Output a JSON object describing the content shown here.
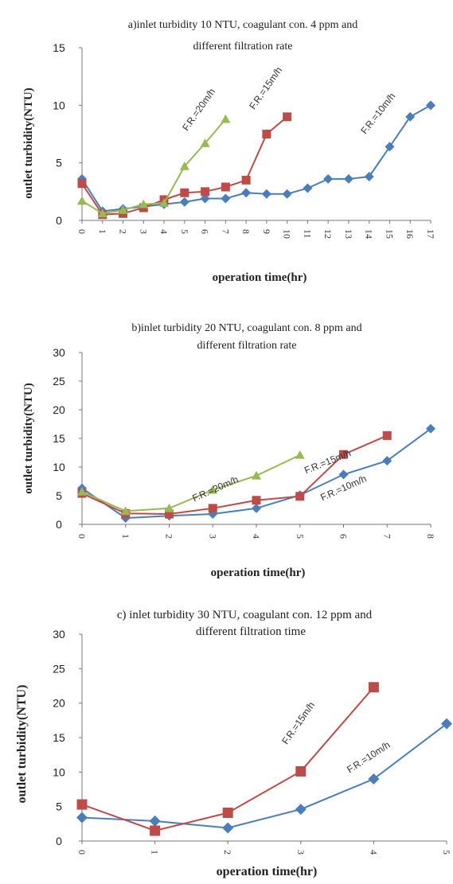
{
  "chart_data": [
    {
      "type": "line",
      "title_line1": "a)inlet turbidity 10 NTU, coagulant con. 4 ppm and",
      "title_line2": "different filtration rate",
      "xlabel": "operation time(hr)",
      "ylabel": "outlet turbidity(NTU)",
      "ylim": [
        0,
        15
      ],
      "yticks": [
        "0",
        "5",
        "10",
        "15"
      ],
      "xlim": [
        0,
        17
      ],
      "xticks": [
        "0",
        "1",
        "2",
        "3",
        "4",
        "5",
        "6",
        "7",
        "8",
        "9",
        "10",
        "11",
        "12",
        "13",
        "14",
        "15",
        "16",
        "17"
      ],
      "grid": false,
      "series": [
        {
          "name": "F.R.=10m/h",
          "color": "#4a7ebb",
          "marker": "diamond",
          "x": [
            0,
            1,
            2,
            3,
            4,
            5,
            6,
            7,
            8,
            9,
            10,
            11,
            12,
            13,
            14,
            15,
            16,
            17
          ],
          "y": [
            3.6,
            0.8,
            1.0,
            1.2,
            1.4,
            1.6,
            1.9,
            1.9,
            2.4,
            2.3,
            2.3,
            2.8,
            3.6,
            3.6,
            3.8,
            6.4,
            9.0,
            10.0
          ]
        },
        {
          "name": "F.R.=15m/h",
          "color": "#be4b48",
          "marker": "square",
          "x": [
            0,
            1,
            2,
            3,
            4,
            5,
            6,
            7,
            8,
            9,
            10
          ],
          "y": [
            3.2,
            0.5,
            0.6,
            1.1,
            1.8,
            2.4,
            2.5,
            2.9,
            3.5,
            7.5,
            9.0
          ]
        },
        {
          "name": "F.R.=20m/h",
          "color": "#98b954",
          "marker": "triangle",
          "x": [
            0,
            1,
            2,
            3,
            4,
            5,
            6,
            7
          ],
          "y": [
            1.7,
            0.6,
            0.9,
            1.4,
            1.5,
            4.7,
            6.7,
            8.8
          ]
        }
      ]
    },
    {
      "type": "line",
      "title_line1": "b)inlet turbidity 20 NTU, coagulant con. 8 ppm and",
      "title_line2": "different filtration rate",
      "xlabel": "operation time(hr)",
      "ylabel": "outlet turbidity(NTU)",
      "ylim": [
        0,
        30
      ],
      "yticks": [
        "0",
        "5",
        "10",
        "15",
        "20",
        "25",
        "30"
      ],
      "xlim": [
        0,
        8
      ],
      "xticks": [
        "0",
        "1",
        "2",
        "3",
        "4",
        "5",
        "6",
        "7",
        "8"
      ],
      "grid": false,
      "series": [
        {
          "name": "F.R.=10m/h",
          "color": "#4a7ebb",
          "marker": "diamond",
          "x": [
            0,
            1,
            2,
            3,
            4,
            5,
            6,
            7,
            8
          ],
          "y": [
            6.3,
            1.1,
            1.5,
            1.8,
            2.8,
            5.1,
            8.7,
            11.1,
            16.7
          ]
        },
        {
          "name": "F.R.=15m/h",
          "color": "#be4b48",
          "marker": "square",
          "x": [
            0,
            1,
            2,
            3,
            4,
            5,
            6,
            7
          ],
          "y": [
            5.4,
            1.9,
            1.8,
            2.8,
            4.2,
            4.9,
            12.2,
            15.5
          ]
        },
        {
          "name": "F.R.=20m/h",
          "color": "#98b954",
          "marker": "triangle",
          "x": [
            0,
            1,
            2,
            3,
            4,
            5
          ],
          "y": [
            5.7,
            2.3,
            2.8,
            6.0,
            8.5,
            12.1
          ]
        }
      ]
    },
    {
      "type": "line",
      "title_line1": "c) inlet turbidity 30 NTU, coagulant con. 12 ppm and",
      "title_line2": "different filtration time",
      "xlabel": "operation time(hr)",
      "ylabel": "outlet turbidity(NTU)",
      "ylim": [
        0,
        30
      ],
      "yticks": [
        "0",
        "5",
        "10",
        "15",
        "20",
        "25",
        "30"
      ],
      "xlim": [
        0,
        5
      ],
      "xticks": [
        "0",
        "1",
        "2",
        "3",
        "4",
        "5"
      ],
      "grid": false,
      "series": [
        {
          "name": "F.R.=10m/h",
          "color": "#4a7ebb",
          "marker": "diamond",
          "x": [
            0,
            1,
            2,
            3,
            4,
            5
          ],
          "y": [
            3.4,
            2.9,
            1.9,
            4.6,
            9.0,
            17.0
          ]
        },
        {
          "name": "F.R.=15m/h",
          "color": "#be4b48",
          "marker": "square",
          "x": [
            0,
            1,
            2,
            3,
            4
          ],
          "y": [
            5.3,
            1.5,
            4.1,
            10.1,
            22.3
          ]
        }
      ]
    }
  ]
}
